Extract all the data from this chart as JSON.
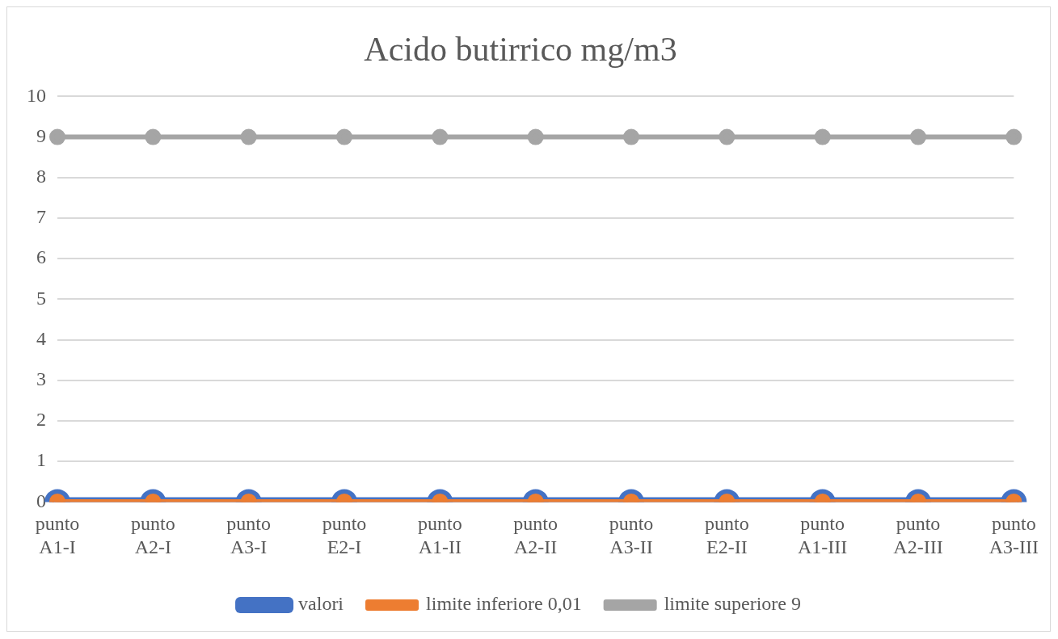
{
  "chart_data": {
    "type": "line",
    "title": "Acido butirrico mg/m3",
    "categories": [
      "punto A1-I",
      "punto A2-I",
      "punto A3-I",
      "punto E2-I",
      "punto A1-II",
      "punto A2-II",
      "punto A3-II",
      "punto E2-II",
      "punto A1-III",
      "punto A2-III",
      "punto A3-III"
    ],
    "series": [
      {
        "name": "valori",
        "color": "#4472c4",
        "values": [
          0,
          0,
          0,
          0,
          0,
          0,
          0,
          0,
          0,
          0,
          0
        ]
      },
      {
        "name": "limite inferiore 0,01",
        "color": "#ed7d31",
        "values": [
          0.01,
          0.01,
          0.01,
          0.01,
          0.01,
          0.01,
          0.01,
          0.01,
          0.01,
          0.01,
          0.01
        ]
      },
      {
        "name": "limite superiore 9",
        "color": "#a5a5a5",
        "values": [
          9,
          9,
          9,
          9,
          9,
          9,
          9,
          9,
          9,
          9,
          9
        ]
      }
    ],
    "ylim": [
      0,
      10
    ],
    "yticks": [
      0,
      1,
      2,
      3,
      4,
      5,
      6,
      7,
      8,
      9,
      10
    ],
    "grid": "y",
    "legend": "bottom",
    "marker": "circle",
    "line_style": "solid"
  }
}
